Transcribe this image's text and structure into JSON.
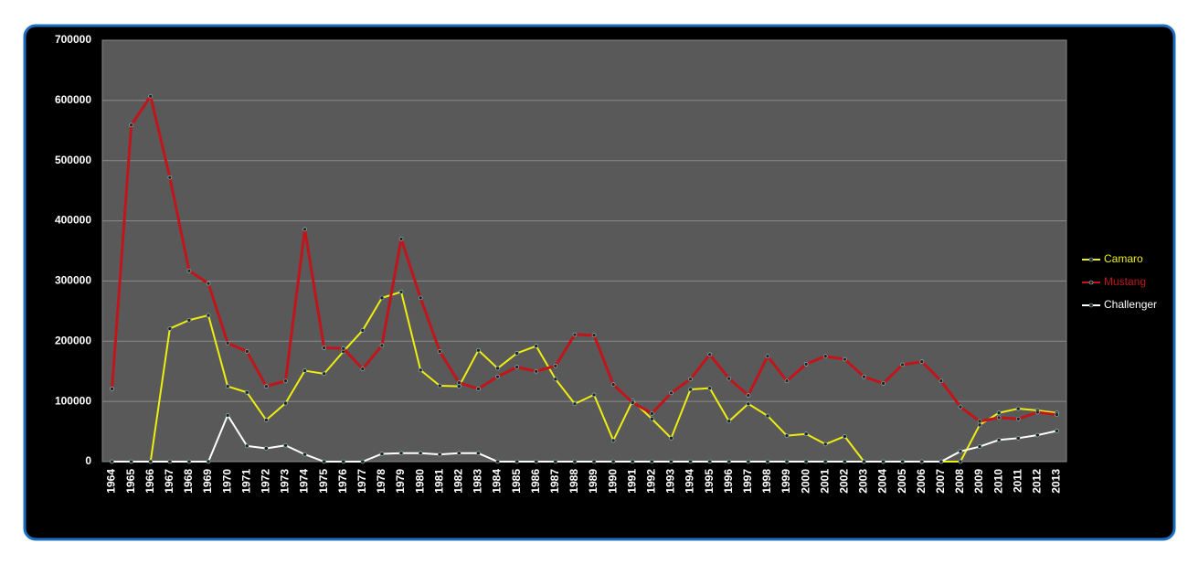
{
  "chart_data": {
    "type": "line",
    "categories": [
      "1964",
      "1965",
      "1966",
      "1967",
      "1968",
      "1969",
      "1970",
      "1971",
      "1972",
      "1973",
      "1974",
      "1975",
      "1976",
      "1977",
      "1978",
      "1979",
      "1980",
      "1981",
      "1982",
      "1983",
      "1984",
      "1985",
      "1986",
      "1987",
      "1988",
      "1989",
      "1990",
      "1991",
      "1992",
      "1993",
      "1994",
      "1995",
      "1996",
      "1997",
      "1998",
      "1999",
      "2000",
      "2001",
      "2002",
      "2003",
      "2004",
      "2005",
      "2006",
      "2007",
      "2008",
      "2009",
      "2010",
      "2011",
      "2012",
      "2013"
    ],
    "series": [
      {
        "name": "Camaro",
        "color": "#eeee10",
        "values": [
          0,
          0,
          0,
          221000,
          235000,
          243000,
          125000,
          115000,
          69000,
          97000,
          151000,
          146000,
          183000,
          218000,
          272000,
          282000,
          152000,
          126000,
          125000,
          185000,
          155000,
          180000,
          192000,
          137000,
          96000,
          111000,
          35000,
          101000,
          71000,
          39000,
          120000,
          122000,
          67000,
          96000,
          76000,
          43000,
          46000,
          29000,
          42000,
          0,
          0,
          0,
          0,
          0,
          0,
          61000,
          81000,
          88000,
          85000,
          81000
        ]
      },
      {
        "name": "Mustang",
        "color": "#c0161b",
        "values": [
          121000,
          559000,
          607000,
          472000,
          317000,
          296000,
          197000,
          183000,
          125000,
          134000,
          386000,
          189000,
          188000,
          154000,
          193000,
          370000,
          272000,
          183000,
          131000,
          121000,
          141000,
          157000,
          150000,
          159000,
          211000,
          210000,
          128000,
          98000,
          80000,
          114000,
          137000,
          178000,
          138000,
          110000,
          175000,
          134000,
          162000,
          175000,
          170000,
          141000,
          130000,
          161000,
          166000,
          134000,
          91000,
          67000,
          73000,
          71000,
          82000,
          78000
        ]
      },
      {
        "name": "Challenger",
        "color": "#ffffff",
        "values": [
          0,
          0,
          0,
          0,
          0,
          0,
          77000,
          26000,
          22000,
          27000,
          12000,
          0,
          0,
          0,
          13000,
          14000,
          14000,
          12000,
          14000,
          14000,
          0,
          0,
          0,
          0,
          0,
          0,
          0,
          0,
          0,
          0,
          0,
          0,
          0,
          0,
          0,
          0,
          0,
          0,
          0,
          0,
          0,
          0,
          0,
          0,
          17000,
          25000,
          36000,
          39000,
          44000,
          51000
        ]
      }
    ],
    "ylim": [
      0,
      700000
    ],
    "yticks": [
      0,
      100000,
      200000,
      300000,
      400000,
      500000,
      600000,
      700000
    ],
    "grid": true,
    "legend": "right"
  }
}
